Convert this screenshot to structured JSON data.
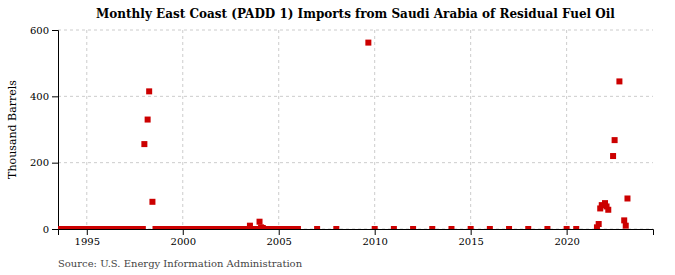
{
  "chart_data": {
    "type": "scatter",
    "title": "Monthly East Coast (PADD 1) Imports from Saudi Arabia of Residual Fuel Oil",
    "ylabel": "Thousand Barrels",
    "source": "Source: U.S. Energy Information Administration",
    "color": "#cc0000",
    "marker": "square",
    "grid": true,
    "xlim": [
      1993.5,
      2024.5
    ],
    "ylim": [
      0,
      600
    ],
    "xticks": [
      1995,
      2000,
      2005,
      2010,
      2015,
      2020
    ],
    "yticks": [
      0,
      200,
      400,
      600
    ],
    "x": [
      1993.5,
      1993.58,
      1993.67,
      1993.75,
      1993.83,
      1993.92,
      1994.0,
      1994.08,
      1994.17,
      1994.25,
      1994.33,
      1994.42,
      1994.5,
      1994.58,
      1994.67,
      1994.75,
      1994.83,
      1994.92,
      1995.0,
      1995.08,
      1995.17,
      1995.25,
      1995.33,
      1995.42,
      1995.5,
      1995.58,
      1995.67,
      1995.75,
      1995.83,
      1995.92,
      1996.0,
      1996.08,
      1996.17,
      1996.25,
      1996.33,
      1996.42,
      1996.5,
      1996.58,
      1996.67,
      1996.75,
      1996.83,
      1996.92,
      1997.0,
      1997.08,
      1997.17,
      1997.25,
      1997.33,
      1997.42,
      1997.5,
      1997.58,
      1997.67,
      1997.75,
      1997.83,
      1997.92,
      1998.0,
      1998.17,
      1998.25,
      1998.42,
      1998.58,
      1998.67,
      1998.75,
      1998.83,
      1998.92,
      1999.0,
      1999.08,
      1999.17,
      1999.25,
      1999.33,
      1999.42,
      1999.5,
      1999.58,
      1999.67,
      1999.75,
      1999.83,
      1999.92,
      2000.0,
      2000.08,
      2000.17,
      2000.25,
      2000.33,
      2000.42,
      2000.5,
      2000.58,
      2000.67,
      2000.75,
      2000.83,
      2000.92,
      2001.0,
      2001.08,
      2001.17,
      2001.25,
      2001.33,
      2001.42,
      2001.5,
      2001.58,
      2001.67,
      2001.75,
      2001.83,
      2001.92,
      2002.0,
      2002.08,
      2002.17,
      2002.25,
      2002.33,
      2002.42,
      2002.5,
      2002.58,
      2002.67,
      2002.75,
      2002.83,
      2002.92,
      2003.0,
      2003.08,
      2003.17,
      2003.25,
      2003.33,
      2003.42,
      2003.5,
      2003.58,
      2003.67,
      2003.75,
      2003.83,
      2003.92,
      2004.0,
      2004.08,
      2004.17,
      2004.25,
      2004.33,
      2004.42,
      2004.5,
      2004.58,
      2004.67,
      2004.75,
      2004.83,
      2004.92,
      2005.0,
      2005.08,
      2005.17,
      2005.25,
      2005.33,
      2005.42,
      2005.5,
      2005.58,
      2005.67,
      2005.75,
      2005.83,
      2005.92,
      2006.0,
      2007.0,
      2008.0,
      2009.67,
      2010.0,
      2011.0,
      2012.0,
      2013.0,
      2014.0,
      2015.0,
      2016.0,
      2017.0,
      2018.0,
      2019.0,
      2020.0,
      2020.5,
      2021.58,
      2021.67,
      2021.75,
      2021.83,
      2022.0,
      2022.08,
      2022.17,
      2022.42,
      2022.5,
      2022.75,
      2023.0,
      2023.08,
      2023.17
    ],
    "values": [
      0,
      0,
      0,
      0,
      0,
      0,
      0,
      0,
      0,
      0,
      0,
      0,
      0,
      0,
      0,
      0,
      0,
      0,
      0,
      0,
      0,
      0,
      0,
      0,
      0,
      0,
      0,
      0,
      0,
      0,
      0,
      0,
      0,
      0,
      0,
      0,
      0,
      0,
      0,
      0,
      0,
      0,
      0,
      0,
      0,
      0,
      0,
      0,
      0,
      0,
      0,
      0,
      0,
      0,
      256,
      330,
      415,
      82,
      0,
      0,
      0,
      0,
      0,
      0,
      0,
      0,
      0,
      0,
      0,
      0,
      0,
      0,
      0,
      0,
      0,
      0,
      0,
      0,
      0,
      0,
      0,
      0,
      0,
      0,
      0,
      0,
      0,
      0,
      0,
      0,
      0,
      0,
      0,
      0,
      0,
      0,
      0,
      0,
      0,
      0,
      0,
      0,
      0,
      0,
      0,
      0,
      0,
      0,
      0,
      0,
      0,
      0,
      0,
      0,
      0,
      0,
      0,
      10,
      0,
      0,
      0,
      0,
      0,
      22,
      5,
      3,
      0,
      0,
      0,
      0,
      0,
      0,
      0,
      0,
      0,
      0,
      0,
      0,
      0,
      0,
      0,
      0,
      0,
      0,
      0,
      0,
      0,
      0,
      0,
      0,
      562,
      0,
      0,
      0,
      0,
      0,
      0,
      0,
      0,
      0,
      0,
      0,
      0,
      5,
      15,
      62,
      72,
      78,
      68,
      58,
      220,
      268,
      445,
      26,
      10,
      92
    ]
  }
}
